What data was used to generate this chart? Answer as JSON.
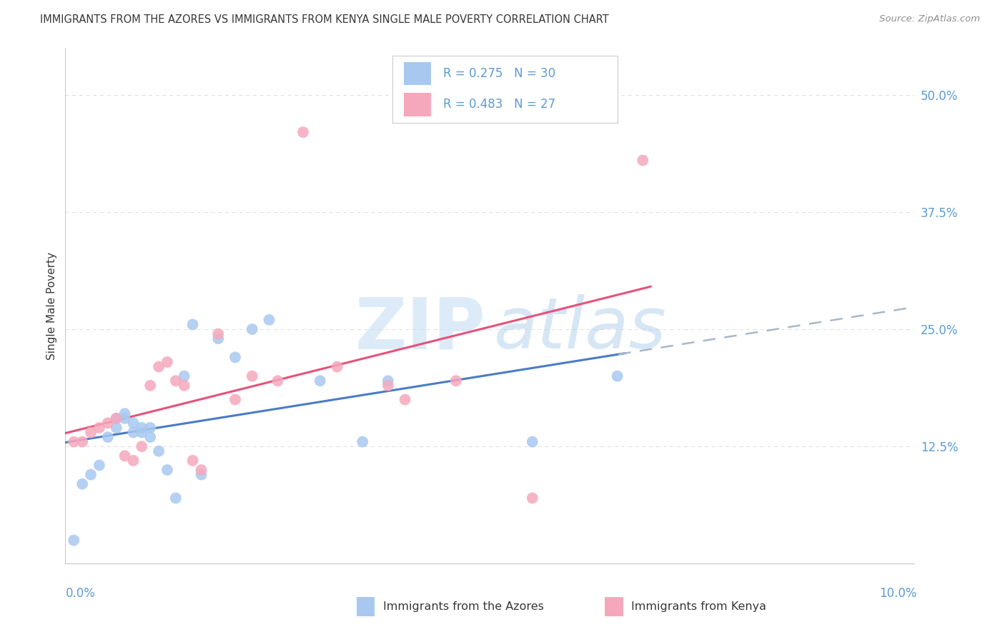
{
  "title": "IMMIGRANTS FROM THE AZORES VS IMMIGRANTS FROM KENYA SINGLE MALE POVERTY CORRELATION CHART",
  "source": "Source: ZipAtlas.com",
  "ylabel": "Single Male Poverty",
  "xlim": [
    0.0,
    0.1
  ],
  "ylim": [
    0.0,
    0.55
  ],
  "yticks": [
    0.0,
    0.125,
    0.25,
    0.375,
    0.5
  ],
  "ytick_labels": [
    "",
    "12.5%",
    "25.0%",
    "37.5%",
    "50.0%"
  ],
  "xtick_positions": [
    0.0,
    0.02,
    0.04,
    0.06,
    0.08,
    0.1
  ],
  "xtick_labels": [
    "0.0%",
    "",
    "",
    "",
    "",
    "10.0%"
  ],
  "r_azores": "0.275",
  "n_azores": "30",
  "r_kenya": "0.483",
  "n_kenya": "27",
  "color_azores": "#A8C8F0",
  "color_kenya": "#F5A8BC",
  "color_azores_line": "#4A7CC7",
  "color_kenya_line": "#E8507A",
  "color_dashed": "#A8B8C8",
  "color_grid": "#DCDCDC",
  "color_title": "#383838",
  "color_tick_labels": "#5B9BD5",
  "color_source": "#909090",
  "color_legend_text": "#5B9BD5",
  "legend_label_azores": "Immigrants from the Azores",
  "legend_label_kenya": "Immigrants from Kenya",
  "azores_x": [
    0.001,
    0.002,
    0.003,
    0.004,
    0.005,
    0.006,
    0.006,
    0.007,
    0.007,
    0.008,
    0.008,
    0.009,
    0.009,
    0.01,
    0.01,
    0.011,
    0.012,
    0.013,
    0.014,
    0.015,
    0.016,
    0.018,
    0.02,
    0.022,
    0.024,
    0.03,
    0.035,
    0.038,
    0.055,
    0.065
  ],
  "azores_y": [
    0.025,
    0.085,
    0.095,
    0.105,
    0.135,
    0.145,
    0.155,
    0.155,
    0.16,
    0.15,
    0.14,
    0.145,
    0.14,
    0.145,
    0.135,
    0.12,
    0.1,
    0.07,
    0.2,
    0.255,
    0.095,
    0.24,
    0.22,
    0.25,
    0.26,
    0.195,
    0.13,
    0.195,
    0.13,
    0.2
  ],
  "kenya_x": [
    0.001,
    0.002,
    0.003,
    0.004,
    0.005,
    0.006,
    0.007,
    0.008,
    0.009,
    0.01,
    0.011,
    0.012,
    0.013,
    0.014,
    0.015,
    0.016,
    0.018,
    0.02,
    0.022,
    0.025,
    0.028,
    0.032,
    0.038,
    0.04,
    0.046,
    0.055,
    0.068
  ],
  "kenya_y": [
    0.13,
    0.13,
    0.14,
    0.145,
    0.15,
    0.155,
    0.115,
    0.11,
    0.125,
    0.19,
    0.21,
    0.215,
    0.195,
    0.19,
    0.11,
    0.1,
    0.245,
    0.175,
    0.2,
    0.195,
    0.46,
    0.21,
    0.19,
    0.175,
    0.195,
    0.07,
    0.43
  ]
}
